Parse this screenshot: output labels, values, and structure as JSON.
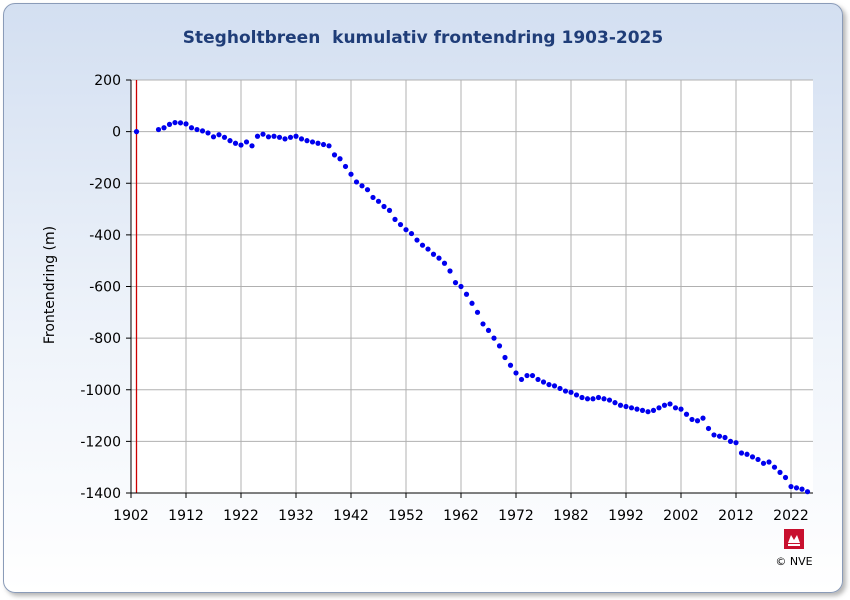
{
  "chart_data": {
    "type": "scatter",
    "title": "Stegholtbreen  kumulativ frontendring 1903-2025",
    "xlabel": "",
    "ylabel": "Frontendring (m)",
    "xlim": [
      1902,
      2026
    ],
    "ylim": [
      -1400,
      200
    ],
    "xticks": [
      1902,
      1912,
      1922,
      1932,
      1942,
      1952,
      1962,
      1972,
      1982,
      1992,
      2002,
      2012,
      2022
    ],
    "yticks": [
      200,
      0,
      -200,
      -400,
      -600,
      -800,
      -1000,
      -1200,
      -1400
    ],
    "grid": true,
    "legend": "none",
    "reference_line_x": 1903,
    "marker_color": "#0000ee",
    "reference_color": "#cc0000",
    "series": [
      {
        "x": [
          1903,
          1907,
          1908,
          1909,
          1910,
          1911,
          1912,
          1913,
          1914,
          1915,
          1916,
          1917,
          1918,
          1919,
          1920,
          1921,
          1922,
          1923,
          1924,
          1925,
          1926,
          1927,
          1928,
          1929,
          1930,
          1931,
          1932,
          1933,
          1934,
          1935,
          1936,
          1937,
          1938,
          1939,
          1940,
          1941,
          1942,
          1943,
          1944,
          1945,
          1946,
          1947,
          1948,
          1949,
          1950,
          1951,
          1952,
          1953,
          1954,
          1955,
          1956,
          1957,
          1958,
          1959,
          1960,
          1961,
          1962,
          1963,
          1964,
          1965,
          1966,
          1967,
          1968,
          1969,
          1970,
          1971,
          1972,
          1973,
          1974,
          1975,
          1976,
          1977,
          1978,
          1979,
          1980,
          1981,
          1982,
          1983,
          1984,
          1985,
          1986,
          1987,
          1988,
          1989,
          1990,
          1991,
          1992,
          1993,
          1994,
          1995,
          1996,
          1997,
          1998,
          1999,
          2000,
          2001,
          2002,
          2003,
          2004,
          2005,
          2006,
          2007,
          2008,
          2009,
          2010,
          2011,
          2012,
          2013,
          2014,
          2015,
          2016,
          2017,
          2018,
          2019,
          2020,
          2021,
          2022,
          2023,
          2024,
          2025
        ],
        "y": [
          0,
          8,
          15,
          28,
          35,
          34,
          30,
          15,
          8,
          3,
          -5,
          -20,
          -12,
          -22,
          -35,
          -45,
          -52,
          -40,
          -55,
          -18,
          -10,
          -20,
          -18,
          -22,
          -28,
          -22,
          -18,
          -28,
          -35,
          -40,
          -45,
          -50,
          -55,
          -90,
          -105,
          -135,
          -165,
          -195,
          -210,
          -225,
          -255,
          -270,
          -290,
          -305,
          -340,
          -360,
          -380,
          -395,
          -420,
          -440,
          -455,
          -475,
          -490,
          -510,
          -540,
          -585,
          -600,
          -630,
          -665,
          -700,
          -745,
          -770,
          -800,
          -830,
          -875,
          -905,
          -935,
          -960,
          -945,
          -945,
          -960,
          -970,
          -980,
          -985,
          -995,
          -1005,
          -1010,
          -1020,
          -1030,
          -1035,
          -1035,
          -1030,
          -1035,
          -1040,
          -1050,
          -1060,
          -1065,
          -1070,
          -1075,
          -1080,
          -1085,
          -1080,
          -1070,
          -1060,
          -1055,
          -1070,
          -1075,
          -1095,
          -1115,
          -1120,
          -1110,
          -1150,
          -1175,
          -1180,
          -1185,
          -1200,
          -1205,
          -1245,
          -1250,
          -1260,
          -1270,
          -1285,
          -1280,
          -1300,
          -1320,
          -1340,
          -1375,
          -1380,
          -1385,
          -1395
        ]
      }
    ]
  },
  "logo": {
    "text": "NVE",
    "copyright": "© NVE"
  }
}
